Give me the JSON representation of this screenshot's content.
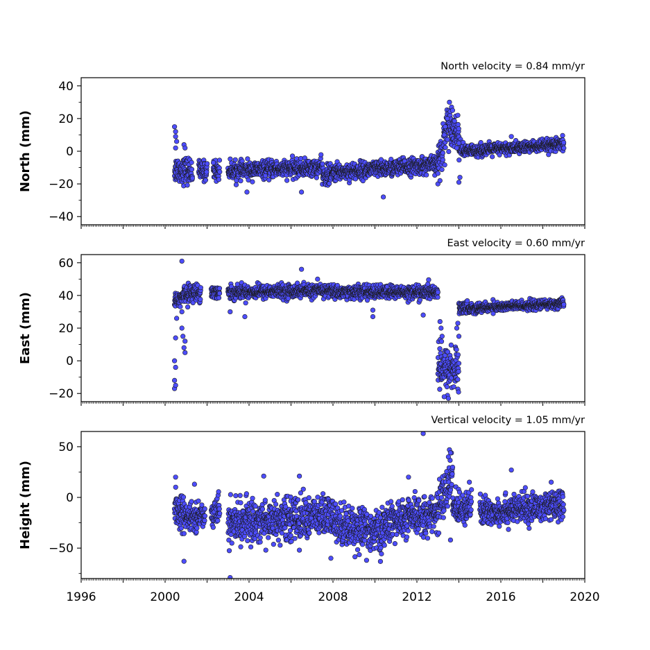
{
  "chart_data": [
    {
      "type": "scatter",
      "ylabel": "North (mm)",
      "annotation": "North velocity = 0.84 mm/yr",
      "xlim": [
        1996,
        2020
      ],
      "ylim": [
        -45,
        45
      ],
      "yticks": [
        -40,
        -20,
        0,
        20,
        40
      ],
      "ytick_labels": [
        "−40",
        "−20",
        "0",
        "20",
        "40"
      ],
      "show_xtick_labels": false,
      "marker_color": "#4d4dff",
      "segments": [
        {
          "x": [
            2000.45,
            2001.3
          ],
          "level": [
            -11,
            -12
          ],
          "spread": 4
        },
        {
          "x": [
            2001.6,
            2002.0
          ],
          "level": [
            -12,
            -12
          ],
          "spread": 3
        },
        {
          "x": [
            2002.3,
            2002.6
          ],
          "level": [
            -11,
            -12
          ],
          "spread": 3
        },
        {
          "x": [
            2003.0,
            2007.5
          ],
          "level": [
            -12,
            -10
          ],
          "spread": 2.5
        },
        {
          "x": [
            2007.5,
            2008.0
          ],
          "level": [
            -15,
            -14
          ],
          "spread": 3
        },
        {
          "x": [
            2008.0,
            2013.0
          ],
          "level": [
            -13,
            -8
          ],
          "spread": 2.5
        },
        {
          "x": [
            2013.0,
            2013.4
          ],
          "level": [
            -8,
            12
          ],
          "spread": 6
        },
        {
          "x": [
            2013.4,
            2014.0
          ],
          "level": [
            18,
            10
          ],
          "spread": 5
        },
        {
          "x": [
            2014.0,
            2014.3
          ],
          "level": [
            2,
            0
          ],
          "spread": 2.5
        },
        {
          "x": [
            2014.3,
            2019.0
          ],
          "level": [
            0,
            4
          ],
          "spread": 1.8
        }
      ],
      "points": [
        {
          "x": 2000.45,
          "y": 15
        },
        {
          "x": 2000.5,
          "y": 12
        },
        {
          "x": 2000.5,
          "y": 9
        },
        {
          "x": 2000.55,
          "y": 6
        },
        {
          "x": 2000.5,
          "y": 2
        },
        {
          "x": 2000.9,
          "y": 4
        },
        {
          "x": 2000.95,
          "y": 2
        },
        {
          "x": 2002.3,
          "y": -7
        },
        {
          "x": 2003.9,
          "y": -25
        },
        {
          "x": 2006.5,
          "y": -25
        },
        {
          "x": 2010.4,
          "y": -28
        },
        {
          "x": 2013.0,
          "y": -20
        },
        {
          "x": 2013.1,
          "y": -18
        },
        {
          "x": 2013.55,
          "y": 30
        },
        {
          "x": 2013.65,
          "y": 27
        },
        {
          "x": 2013.7,
          "y": 25
        },
        {
          "x": 2013.95,
          "y": 22
        },
        {
          "x": 2014.0,
          "y": -19
        },
        {
          "x": 2014.05,
          "y": -16
        },
        {
          "x": 2016.5,
          "y": 9
        },
        {
          "x": 2013.3,
          "y": 10
        },
        {
          "x": 2013.35,
          "y": 15
        },
        {
          "x": 2013.45,
          "y": 20
        },
        {
          "x": 2013.9,
          "y": 2
        },
        {
          "x": 2014.0,
          "y": 5
        }
      ]
    },
    {
      "type": "scatter",
      "ylabel": "East (mm)",
      "annotation": "East velocity = 0.60 mm/yr",
      "xlim": [
        1996,
        2020
      ],
      "ylim": [
        -25,
        65
      ],
      "yticks": [
        -20,
        0,
        20,
        40,
        60
      ],
      "ytick_labels": [
        "−20",
        "0",
        "20",
        "40",
        "60"
      ],
      "show_xtick_labels": false,
      "marker_color": "#4d4dff",
      "segments": [
        {
          "x": [
            2000.45,
            2000.9
          ],
          "level": [
            37,
            39
          ],
          "spread": 3
        },
        {
          "x": [
            2000.9,
            2001.7
          ],
          "level": [
            41,
            42
          ],
          "spread": 2.5
        },
        {
          "x": [
            2002.2,
            2002.6
          ],
          "level": [
            42,
            42
          ],
          "spread": 2
        },
        {
          "x": [
            2003.0,
            2008.0
          ],
          "level": [
            42,
            43
          ],
          "spread": 2
        },
        {
          "x": [
            2008.0,
            2013.0
          ],
          "level": [
            42,
            42
          ],
          "spread": 2
        },
        {
          "x": [
            2013.0,
            2014.0
          ],
          "level": [
            -5,
            -5
          ],
          "spread": 7
        },
        {
          "x": [
            2014.0,
            2014.4
          ],
          "level": [
            32,
            33
          ],
          "spread": 2
        },
        {
          "x": [
            2014.4,
            2019.0
          ],
          "level": [
            32,
            35
          ],
          "spread": 1.4
        }
      ],
      "points": [
        {
          "x": 2000.45,
          "y": -17
        },
        {
          "x": 2000.5,
          "y": -15
        },
        {
          "x": 2000.45,
          "y": -12
        },
        {
          "x": 2000.5,
          "y": -4
        },
        {
          "x": 2000.45,
          "y": 0
        },
        {
          "x": 2000.5,
          "y": 14
        },
        {
          "x": 2000.55,
          "y": 26
        },
        {
          "x": 2000.8,
          "y": 20
        },
        {
          "x": 2000.85,
          "y": 15
        },
        {
          "x": 2000.9,
          "y": 8
        },
        {
          "x": 2000.95,
          "y": 5
        },
        {
          "x": 2000.8,
          "y": 30
        },
        {
          "x": 2000.95,
          "y": 12
        },
        {
          "x": 2000.8,
          "y": 61
        },
        {
          "x": 2003.1,
          "y": 30
        },
        {
          "x": 2003.8,
          "y": 27
        },
        {
          "x": 2006.5,
          "y": 56
        },
        {
          "x": 2009.9,
          "y": 31
        },
        {
          "x": 2009.9,
          "y": 27
        },
        {
          "x": 2012.3,
          "y": 28
        },
        {
          "x": 2013.1,
          "y": 24
        },
        {
          "x": 2013.15,
          "y": 20
        },
        {
          "x": 2013.2,
          "y": 15
        },
        {
          "x": 2013.95,
          "y": 23
        },
        {
          "x": 2013.9,
          "y": 20
        },
        {
          "x": 2014.0,
          "y": 15
        },
        {
          "x": 2013.5,
          "y": -23
        },
        {
          "x": 2013.3,
          "y": -22
        }
      ]
    },
    {
      "type": "scatter",
      "ylabel": "Height (mm)",
      "annotation": "Vertical velocity = 1.05 mm/yr",
      "xlim": [
        1996,
        2020
      ],
      "ylim": [
        -80,
        65
      ],
      "yticks": [
        -50,
        0,
        50
      ],
      "ytick_labels": [
        "−50",
        "0",
        "50"
      ],
      "show_xtick_labels": true,
      "xticks": [
        1996,
        2000,
        2004,
        2008,
        2012,
        2016,
        2020
      ],
      "xtick_labels": [
        "1996",
        "2000",
        "2004",
        "2008",
        "2012",
        "2016",
        "2020"
      ],
      "marker_color": "#4d4dff",
      "segments": [
        {
          "x": [
            2000.45,
            2001.0
          ],
          "level": [
            -10,
            -20
          ],
          "spread": 9
        },
        {
          "x": [
            2001.0,
            2001.9
          ],
          "level": [
            -20,
            -18
          ],
          "spread": 6
        },
        {
          "x": [
            2002.2,
            2002.6
          ],
          "level": [
            -15,
            -10
          ],
          "spread": 7
        },
        {
          "x": [
            2003.0,
            2008.0
          ],
          "level": [
            -25,
            -18
          ],
          "spread": 10
        },
        {
          "x": [
            2008.0,
            2010.5
          ],
          "level": [
            -25,
            -35
          ],
          "spread": 10
        },
        {
          "x": [
            2010.5,
            2013.0
          ],
          "level": [
            -25,
            -15
          ],
          "spread": 9
        },
        {
          "x": [
            2013.0,
            2013.7
          ],
          "level": [
            -10,
            20
          ],
          "spread": 11
        },
        {
          "x": [
            2013.7,
            2014.6
          ],
          "level": [
            -10,
            -8
          ],
          "spread": 8
        },
        {
          "x": [
            2015.0,
            2019.0
          ],
          "level": [
            -15,
            -8
          ],
          "spread": 7
        }
      ],
      "points": [
        {
          "x": 2003.1,
          "y": -79
        },
        {
          "x": 2000.9,
          "y": -63
        },
        {
          "x": 2012.3,
          "y": 63
        },
        {
          "x": 2013.55,
          "y": 47
        },
        {
          "x": 2013.6,
          "y": 44
        },
        {
          "x": 2013.5,
          "y": 40
        },
        {
          "x": 2004.7,
          "y": 21
        },
        {
          "x": 2006.4,
          "y": 21
        },
        {
          "x": 2011.6,
          "y": 20
        },
        {
          "x": 2016.5,
          "y": 27
        },
        {
          "x": 2000.5,
          "y": 20
        },
        {
          "x": 2001.4,
          "y": 13
        },
        {
          "x": 2009.6,
          "y": -62
        },
        {
          "x": 2007.9,
          "y": -60
        },
        {
          "x": 2004.8,
          "y": -52
        },
        {
          "x": 2006.4,
          "y": -52
        },
        {
          "x": 2013.6,
          "y": -42
        },
        {
          "x": 2014.5,
          "y": 15
        },
        {
          "x": 2018.4,
          "y": 15
        }
      ]
    }
  ]
}
